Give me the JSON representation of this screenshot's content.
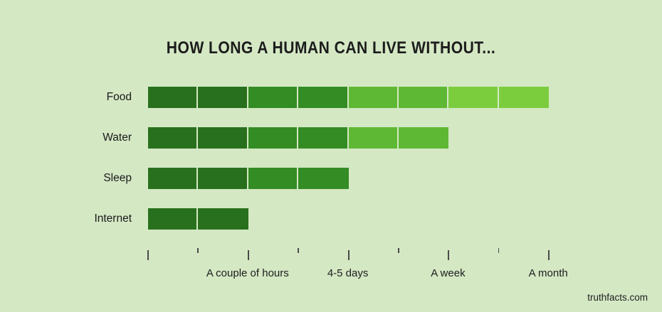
{
  "credit": "truthfacts.com",
  "colors": {
    "background": "#d4e8c4",
    "tick": "#4a4a4a",
    "text": "#1c1c1c",
    "green_dark": "#28701e",
    "green_medium": "#348c24",
    "green_light": "#5fb833",
    "green_lightest": "#7bcd3e"
  },
  "chart_data": {
    "type": "bar",
    "orientation": "horizontal",
    "title": "HOW LONG A HUMAN CAN LIVE WITHOUT...",
    "categories": [
      "Food",
      "Water",
      "Sleep",
      "Internet"
    ],
    "values_segments": [
      8,
      6,
      4,
      2
    ],
    "value_meaning": [
      {
        "category": "Food",
        "duration": "A month"
      },
      {
        "category": "Water",
        "duration": "A week"
      },
      {
        "category": "Sleep",
        "duration": "4-5 days"
      },
      {
        "category": "Internet",
        "duration": "A couple of hours"
      }
    ],
    "segment_colors": [
      "#28701e",
      "#28701e",
      "#348c24",
      "#348c24",
      "#5fb833",
      "#5fb833",
      "#7bcd3e",
      "#7bcd3e"
    ],
    "x_axis": {
      "range_segments": [
        0,
        8
      ],
      "major_tick_every": 2,
      "minor_tick_every": 1,
      "tick_labels": [
        {
          "position": 2,
          "label": "A couple of hours"
        },
        {
          "position": 4,
          "label": "4-5 days"
        },
        {
          "position": 6,
          "label": "A week"
        },
        {
          "position": 8,
          "label": "A month"
        }
      ]
    },
    "grid": false,
    "legend": false
  }
}
